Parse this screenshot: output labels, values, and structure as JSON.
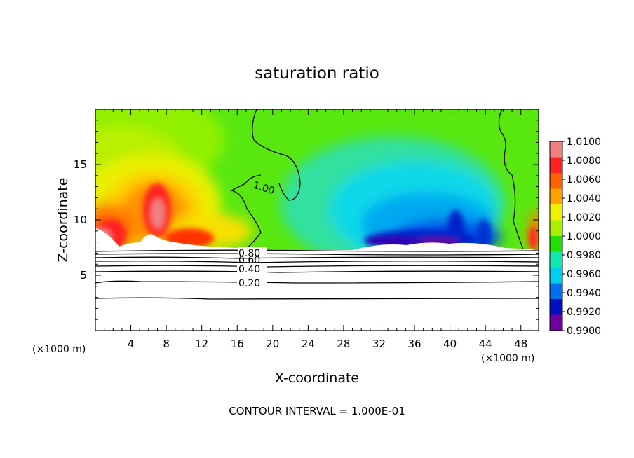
{
  "chart_data": {
    "type": "heatmap",
    "title": "saturation ratio",
    "xlabel": "X-coordinate",
    "ylabel": "Z-coordinate",
    "x_unit_label": "(×1000 m)",
    "y_unit_label": "(×1000 m)",
    "xlim": [
      0,
      50
    ],
    "ylim": [
      0,
      20
    ],
    "x_ticks": [
      "4",
      "8",
      "12",
      "16",
      "20",
      "24",
      "28",
      "32",
      "36",
      "40",
      "44",
      "48"
    ],
    "y_ticks": [
      "5",
      "10",
      "15"
    ],
    "x_tick_values": [
      4,
      8,
      12,
      16,
      20,
      24,
      28,
      32,
      36,
      40,
      44,
      48
    ],
    "y_tick_values": [
      5,
      10,
      15
    ],
    "footer": "CONTOUR INTERVAL = 1.000E-01",
    "colorbar": {
      "labels": [
        "1.0100",
        "1.0080",
        "1.0060",
        "1.0040",
        "1.0020",
        "1.0000",
        "0.9980",
        "0.9960",
        "0.9940",
        "0.9920",
        "0.9900"
      ],
      "values": [
        1.01,
        1.008,
        1.006,
        1.004,
        1.002,
        1.0,
        0.998,
        0.996,
        0.994,
        0.992,
        0.99
      ],
      "colors": [
        "#f08080",
        "#ff2020",
        "#ff6000",
        "#ffa000",
        "#f0f000",
        "#a8f000",
        "#20e000",
        "#10e8b0",
        "#00d0f0",
        "#0070f0",
        "#0010c0",
        "#7000a0"
      ]
    },
    "contour_labels": [
      "1.00",
      "0.80",
      "0.60",
      "0.40",
      "0.20"
    ],
    "contour_label_values": [
      1.0,
      0.8,
      0.6,
      0.4,
      0.2
    ],
    "field_notes_surface_z": 7.2
  }
}
